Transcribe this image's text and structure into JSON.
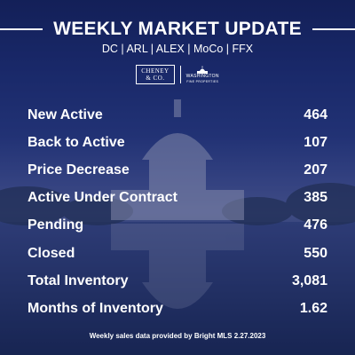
{
  "header": {
    "title": "WEEKLY MARKET UPDATE",
    "subtitle": "DC | ARL | ALEX | MoCo | FFX"
  },
  "logos": {
    "cheney": {
      "line1": "CHENEY",
      "line2": "& CO."
    },
    "wfp": {
      "line1": "WASHINGTON",
      "line2": "FINE PROPERTIES"
    }
  },
  "stats": [
    {
      "label": "New Active",
      "value": "464"
    },
    {
      "label": "Back to Active",
      "value": "107"
    },
    {
      "label": "Price Decrease",
      "value": "207"
    },
    {
      "label": "Active Under Contract",
      "value": "385"
    },
    {
      "label": "Pending",
      "value": "476"
    },
    {
      "label": "Closed",
      "value": "550"
    },
    {
      "label": "Total Inventory",
      "value": "3,081"
    },
    {
      "label": "Months of Inventory",
      "value": "1.62"
    }
  ],
  "footer": "Weekly sales data provided by Bright MLS 2.27.2023",
  "colors": {
    "background": "#1d2f78",
    "text": "#ffffff"
  }
}
